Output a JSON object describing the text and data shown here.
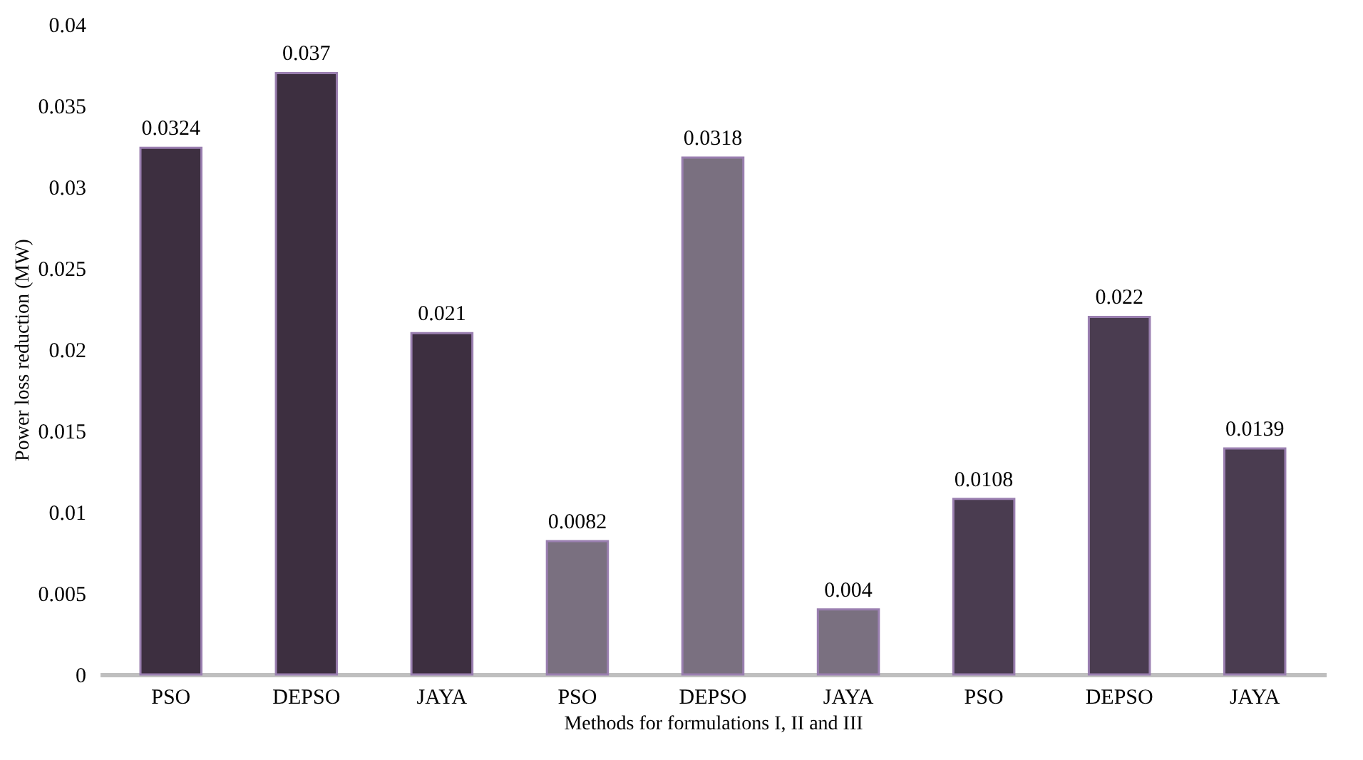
{
  "chart_data": {
    "type": "bar",
    "xlabel": "Methods for formulations I, II and III",
    "ylabel": "Power loss reduction (MW)",
    "categories": [
      "PSO",
      "DEPSO",
      "JAYA",
      "PSO",
      "DEPSO",
      "JAYA",
      "PSO",
      "DEPSO",
      "JAYA"
    ],
    "values": [
      0.0324,
      0.037,
      0.021,
      0.0082,
      0.0318,
      0.004,
      0.0108,
      0.022,
      0.0139
    ],
    "colors": [
      "#3d2f40",
      "#3d2f40",
      "#3d2f40",
      "#7a7080",
      "#7a7080",
      "#7a7080",
      "#4a3c50",
      "#4a3c50",
      "#4a3c50"
    ],
    "ylim": [
      0,
      0.04
    ],
    "yticks": [
      0,
      0.005,
      0.01,
      0.015,
      0.02,
      0.025,
      0.03,
      0.035,
      0.04
    ],
    "data_labels": true,
    "grid": false
  }
}
